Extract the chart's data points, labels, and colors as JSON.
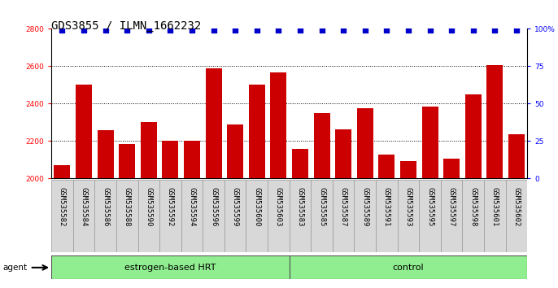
{
  "title": "GDS3855 / ILMN_1662232",
  "samples": [
    "GSM535582",
    "GSM535584",
    "GSM535586",
    "GSM535588",
    "GSM535590",
    "GSM535592",
    "GSM535594",
    "GSM535596",
    "GSM535599",
    "GSM535600",
    "GSM535603",
    "GSM535583",
    "GSM535585",
    "GSM535587",
    "GSM535589",
    "GSM535591",
    "GSM535593",
    "GSM535595",
    "GSM535597",
    "GSM535598",
    "GSM535601",
    "GSM535602"
  ],
  "counts": [
    2070,
    2500,
    2260,
    2185,
    2300,
    2200,
    2200,
    2590,
    2290,
    2500,
    2565,
    2160,
    2350,
    2265,
    2375,
    2130,
    2095,
    2385,
    2105,
    2450,
    2605,
    2235
  ],
  "group_labels": [
    "estrogen-based HRT",
    "control"
  ],
  "group_sizes": [
    11,
    11
  ],
  "bar_color": "#CC0000",
  "dot_color": "#0000CC",
  "ylim_left": [
    2000,
    2800
  ],
  "ylim_right": [
    0,
    100
  ],
  "yticks_left": [
    2000,
    2200,
    2400,
    2600,
    2800
  ],
  "yticks_right": [
    0,
    25,
    50,
    75,
    100
  ],
  "dotted_lines": [
    2200,
    2400,
    2600
  ],
  "title_fontsize": 10,
  "tick_fontsize": 6.5,
  "label_fontsize": 8,
  "legend_fontsize": 7.5,
  "green_color": "#90EE90",
  "ticklabel_bg": "#D8D8D8"
}
